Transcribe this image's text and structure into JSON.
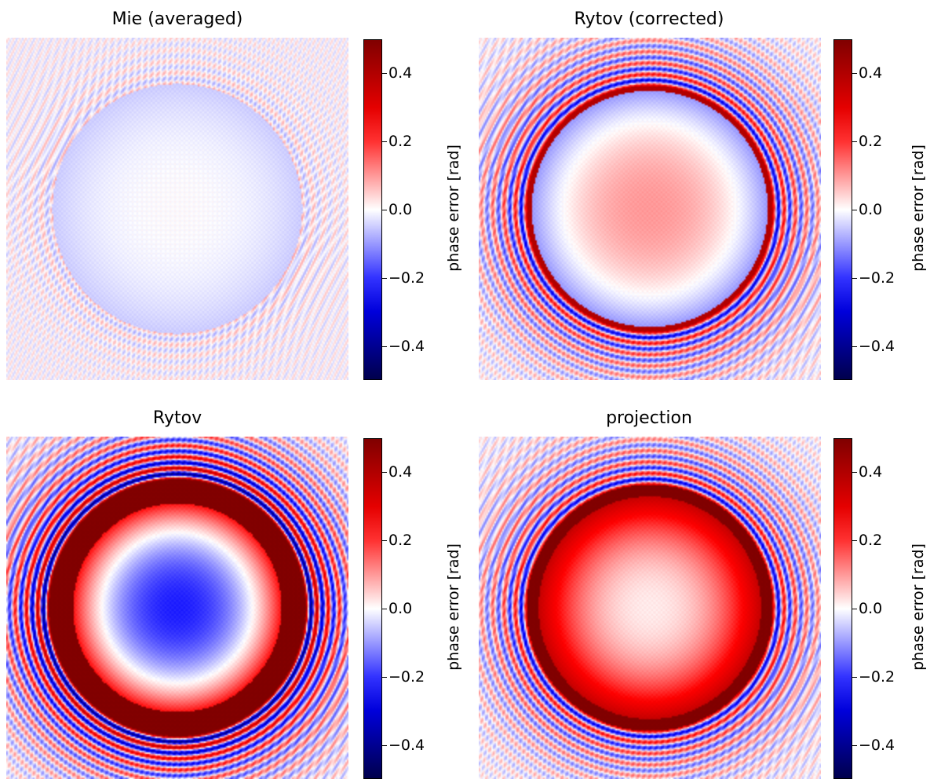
{
  "chart_data": [
    {
      "type": "heatmap",
      "title": "Mie (averaged)",
      "colormap": "seismic",
      "colorbar": {
        "label": "phase error [rad]",
        "range": [
          -0.5,
          0.5
        ],
        "ticks": [
          "0.4",
          "0.2",
          "0.0",
          "−0.2",
          "−0.4"
        ],
        "tick_values": [
          0.4,
          0.2,
          0.0,
          -0.2,
          -0.4
        ]
      },
      "pattern": {
        "disc_radius": 0.73,
        "disc_center_error": 0.0,
        "disc_edge_error": -0.05,
        "ring_error": 0.0,
        "ring_width": 0.0,
        "fringe_amplitude": 0.06
      }
    },
    {
      "type": "heatmap",
      "title": "Rytov (corrected)",
      "colormap": "seismic",
      "colorbar": {
        "label": "phase error [rad]",
        "range": [
          -0.5,
          0.5
        ],
        "ticks": [
          "0.4",
          "0.2",
          "0.0",
          "−0.2",
          "−0.4"
        ],
        "tick_values": [
          0.4,
          0.2,
          0.0,
          -0.2,
          -0.4
        ]
      },
      "pattern": {
        "disc_radius": 0.72,
        "disc_center_error": 0.1,
        "disc_edge_error": -0.12,
        "ring_error": 0.4,
        "ring_width": 0.03,
        "fringe_amplitude": 0.3
      }
    },
    {
      "type": "heatmap",
      "title": "Rytov",
      "colormap": "seismic",
      "colorbar": {
        "label": "phase error [rad]",
        "range": [
          -0.5,
          0.5
        ],
        "ticks": [
          "0.4",
          "0.2",
          "0.0",
          "−0.2",
          "−0.4"
        ],
        "tick_values": [
          0.4,
          0.2,
          0.0,
          -0.2,
          -0.4
        ]
      },
      "pattern": {
        "disc_radius": 0.75,
        "disc_center_error": -0.22,
        "disc_edge_error": 0.5,
        "ring_error": 0.5,
        "ring_width": 0.14,
        "fringe_amplitude": 0.45
      }
    },
    {
      "type": "heatmap",
      "title": "projection",
      "colormap": "seismic",
      "colorbar": {
        "label": "phase error [rad]",
        "range": [
          -0.5,
          0.5
        ],
        "ticks": [
          "0.4",
          "0.2",
          "0.0",
          "−0.2",
          "−0.4"
        ],
        "tick_values": [
          0.4,
          0.2,
          0.0,
          -0.2,
          -0.4
        ]
      },
      "pattern": {
        "disc_radius": 0.72,
        "disc_center_error": 0.02,
        "disc_edge_error": 0.45,
        "ring_error": 0.5,
        "ring_width": 0.07,
        "fringe_amplitude": 0.3
      }
    }
  ]
}
